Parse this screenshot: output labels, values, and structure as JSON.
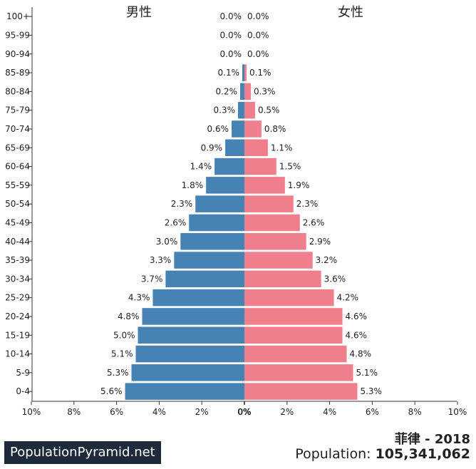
{
  "chart_data": {
    "type": "bar",
    "male_label": "男性",
    "female_label": "女性",
    "colors": {
      "male": "#4682b4",
      "female": "#f07f8d"
    },
    "categories": [
      "100+",
      "95-99",
      "90-94",
      "85-89",
      "80-84",
      "75-79",
      "70-74",
      "65-69",
      "60-64",
      "55-59",
      "50-54",
      "45-49",
      "40-44",
      "35-39",
      "30-34",
      "25-29",
      "20-24",
      "15-19",
      "10-14",
      "5-9",
      "0-4"
    ],
    "series": [
      {
        "name": "男性",
        "values": [
          0.0,
          0.0,
          0.0,
          0.1,
          0.2,
          0.3,
          0.6,
          0.9,
          1.4,
          1.8,
          2.3,
          2.6,
          3.0,
          3.3,
          3.7,
          4.3,
          4.8,
          5.0,
          5.1,
          5.3,
          5.6
        ]
      },
      {
        "name": "女性",
        "values": [
          0.0,
          0.0,
          0.0,
          0.1,
          0.3,
          0.5,
          0.8,
          1.1,
          1.5,
          1.9,
          2.3,
          2.6,
          2.9,
          3.2,
          3.6,
          4.2,
          4.6,
          4.6,
          4.8,
          5.1,
          5.3
        ]
      }
    ],
    "x_ticks": [
      "10%",
      "8%",
      "6%",
      "4%",
      "2%",
      "0%",
      "0%",
      "2%",
      "4%",
      "6%",
      "8%",
      "10%"
    ],
    "xlim": [
      -10,
      10
    ]
  },
  "footer": {
    "brand": "PopulationPyramid.net",
    "country_year": "菲律 - 2018",
    "population_label": "Population:",
    "population_value": "105,341,062"
  }
}
